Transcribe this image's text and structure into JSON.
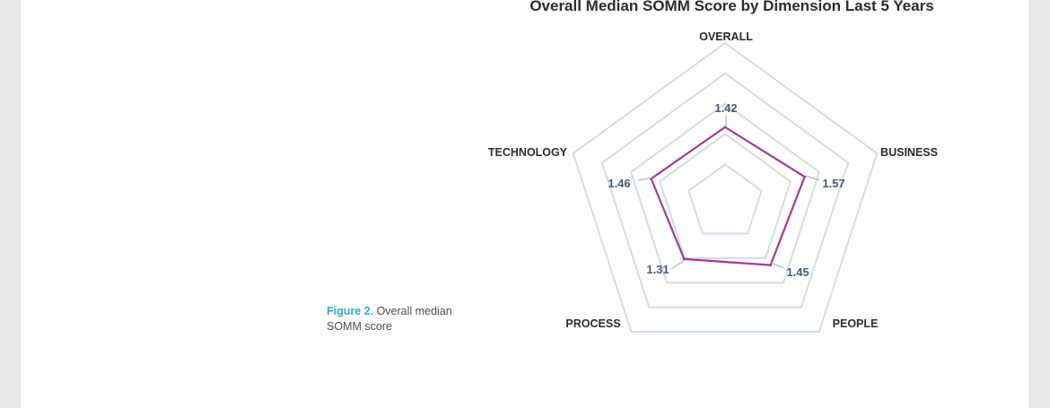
{
  "figure": {
    "caption_label": "Figure 2.",
    "caption_text": "Overall median SOMM score"
  },
  "chart_data": {
    "type": "radar",
    "title": "Overall Median SOMM Score by Dimension Last 5 Years",
    "axes": [
      "OVERALL",
      "BUSINESS",
      "PEOPLE",
      "PROCESS",
      "TECHNOLOGY"
    ],
    "values": [
      1.42,
      1.57,
      1.45,
      1.31,
      1.46
    ],
    "value_labels": [
      "1.42",
      "1.57",
      "1.45",
      "1.31",
      "1.46"
    ],
    "rlim": [
      0,
      3
    ],
    "grid_rings": 5,
    "series_color": "#a23a93",
    "grid_color": "#d4dbe5"
  }
}
